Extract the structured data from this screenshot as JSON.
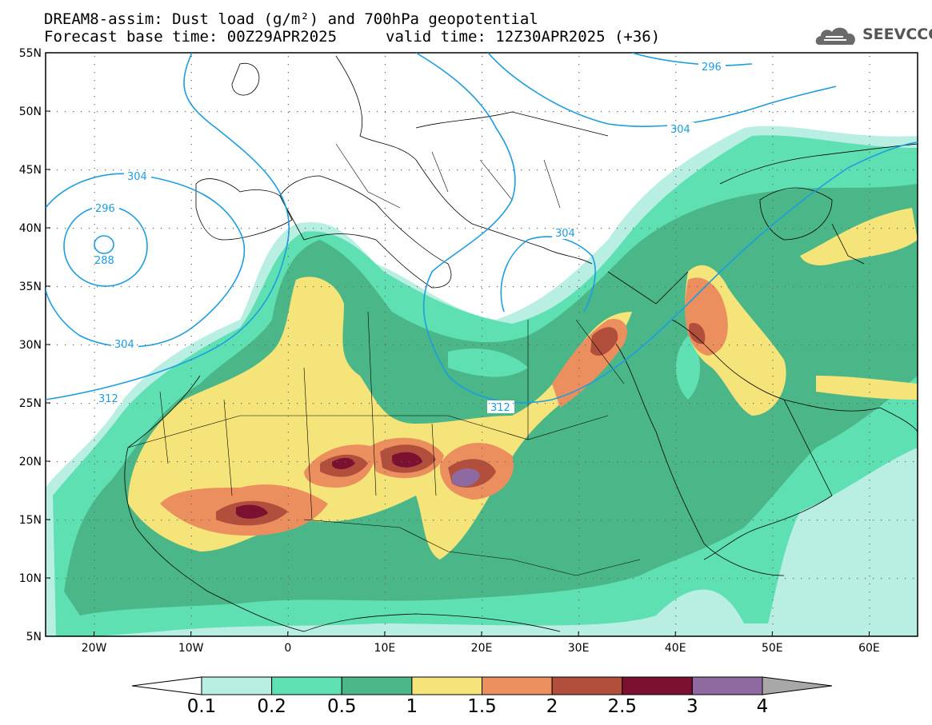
{
  "header": {
    "line1": "DREAM8-assim: Dust load (g/m²) and 700hPa geopotential",
    "base_time": "Forecast base time: 00Z29APR2025",
    "valid_time": "valid time: 12Z30APR2025 (+36)"
  },
  "logo": {
    "text": "SEEVCCC",
    "icon": "cloud-logo-icon"
  },
  "axes": {
    "lat_labels": [
      "55N",
      "50N",
      "45N",
      "40N",
      "35N",
      "30N",
      "25N",
      "20N",
      "15N",
      "10N",
      "5N"
    ],
    "lon_labels": [
      "20W",
      "10W",
      "0",
      "10E",
      "20E",
      "30E",
      "40E",
      "50E",
      "60E"
    ]
  },
  "contours": {
    "labels": [
      {
        "text": "296"
      },
      {
        "text": "304"
      },
      {
        "text": "304"
      },
      {
        "text": "296"
      },
      {
        "text": "288"
      },
      {
        "text": "304"
      },
      {
        "text": "312"
      },
      {
        "text": "304"
      },
      {
        "text": "312"
      }
    ]
  },
  "colorbar": {
    "labels": [
      "0.1",
      "0.2",
      "0.5",
      "1",
      "1.5",
      "2",
      "2.5",
      "3",
      "4"
    ],
    "colors": [
      "#b9eee3",
      "#5fe0b3",
      "#4bb687",
      "#f4e47a",
      "#ec8f5f",
      "#b24e3c",
      "#7b1030",
      "#8e6aa0"
    ],
    "low_color": "#ffffff",
    "high_color": "#a8a8a8"
  }
}
